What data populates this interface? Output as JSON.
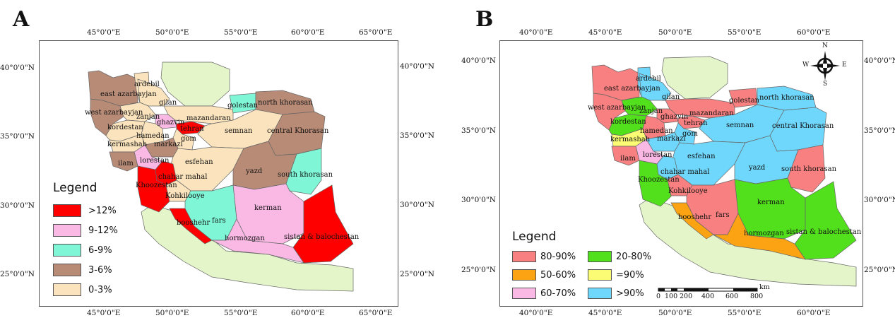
{
  "panels": {
    "A": {
      "letter": "A",
      "top_lon_ticks": [
        "45°0'0\"E",
        "50°0'0\"E",
        "55°0'0\"E",
        "60°0'0\"E",
        "65°0'0\"E"
      ],
      "bottom_lon_ticks": [
        "45°0'0\"E",
        "50°0'0\"E",
        "55°0'0\"E",
        "60°0'0\"E",
        "65°0'0\"E"
      ],
      "left_lat_ticks": [
        "40°0'0\"N",
        "35°0'0\"N",
        "30°0'0\"N",
        "25°0'0\"N"
      ],
      "right_lat_ticks": [
        "40°0'0\"N",
        "35°0'0\"N",
        "30°0'0\"N",
        "25°0'0\"N"
      ],
      "legend_title": "Legend",
      "legend": [
        {
          "label": ">12%",
          "color": "#ff0000"
        },
        {
          "label": "9-12%",
          "color": "#f9b9e4"
        },
        {
          "label": "6-9%",
          "color": "#7ff7d7"
        },
        {
          "label": "3-6%",
          "color": "#b88b77"
        },
        {
          "label": "0-3%",
          "color": "#fbe4bd"
        }
      ],
      "provinces": [
        {
          "name": "ardebil",
          "color": "#fbe4bd"
        },
        {
          "name": "east azarbayjan",
          "color": "#b88b77"
        },
        {
          "name": "gilan",
          "color": "#fbe4bd"
        },
        {
          "name": "golestan",
          "color": "#7ff7d7"
        },
        {
          "name": "north khorasan",
          "color": "#b88b77"
        },
        {
          "name": "west azarbayjan",
          "color": "#b88b77"
        },
        {
          "name": "zanjan",
          "color": "#fbe4bd"
        },
        {
          "name": "mazandaran",
          "color": "#fbe4bd"
        },
        {
          "name": "ghazvin",
          "color": "#f9b9e4"
        },
        {
          "name": "kordestan",
          "color": "#fbe4bd"
        },
        {
          "name": "tehran",
          "color": "#ff0000"
        },
        {
          "name": "semnan",
          "color": "#fbe4bd"
        },
        {
          "name": "central Khorasan",
          "color": "#b88b77"
        },
        {
          "name": "hamedan",
          "color": "#fbe4bd"
        },
        {
          "name": "gom",
          "color": "#fbe4bd"
        },
        {
          "name": "kermashah",
          "color": "#fbe4bd"
        },
        {
          "name": "markazi",
          "color": "#b88b77"
        },
        {
          "name": "lorestan",
          "color": "#f9b9e4"
        },
        {
          "name": "esfehan",
          "color": "#fbe4bd"
        },
        {
          "name": "ilam",
          "color": "#b88b77"
        },
        {
          "name": "yazd",
          "color": "#b88b77"
        },
        {
          "name": "south khorasan",
          "color": "#7ff7d7"
        },
        {
          "name": "chahar mahal",
          "color": "#ff0000"
        },
        {
          "name": "Khoozestan",
          "color": "#ff0000"
        },
        {
          "name": "Kohkilooye",
          "color": "#fbe4bd"
        },
        {
          "name": "kerman",
          "color": "#f9b9e4"
        },
        {
          "name": "booshehr",
          "color": "#ff0000"
        },
        {
          "name": "fars",
          "color": "#7ff7d7"
        },
        {
          "name": "sistan & balochestan",
          "color": "#ff0000"
        },
        {
          "name": "hormozgan",
          "color": "#f9b9e4"
        }
      ]
    },
    "B": {
      "letter": "B",
      "top_lon_ticks": [
        "40°0'0\"E",
        "45°0'0\"E",
        "50°0'0\"E",
        "55°0'0\"E",
        "60°0'0\"E"
      ],
      "bottom_lon_ticks": [
        "40°0'0\"E",
        "45°0'0\"E",
        "50°0'0\"E",
        "55°0'0\"E",
        "60°0'0\"E"
      ],
      "left_lat_ticks": [
        "40°0'0\"N",
        "35°0'0\"N",
        "30°0'0\"N",
        "25°0'0\"N"
      ],
      "right_lat_ticks": [
        "40°0'0\"N",
        "35°0'0\"N",
        "30°0'0\"N",
        "25°0'0\"N"
      ],
      "legend_title": "Legend",
      "legend": [
        {
          "label": "80-90%",
          "color": "#f98080"
        },
        {
          "label": "20-80%",
          "color": "#52e01c"
        },
        {
          "label": "50-60%",
          "color": "#fba312"
        },
        {
          "label": "=90%",
          "color": "#fbfb74"
        },
        {
          "label": "60-70%",
          "color": "#f9b9e4"
        },
        {
          "label": ">90%",
          "color": "#6ed7fb"
        }
      ],
      "compass": {
        "n": "N",
        "s": "S",
        "e": "E",
        "w": "W"
      },
      "scale": {
        "unit": "km",
        "labels": [
          "0",
          "100",
          "200",
          "400",
          "600",
          "800"
        ]
      },
      "provinces": [
        {
          "name": "ardebil",
          "color": "#6ed7fb"
        },
        {
          "name": "east azarbayjan",
          "color": "#f98080"
        },
        {
          "name": "gilan",
          "color": "#6ed7fb"
        },
        {
          "name": "golestan",
          "color": "#f98080"
        },
        {
          "name": "north khorasan",
          "color": "#6ed7fb"
        },
        {
          "name": "west azarbayjan",
          "color": "#f98080"
        },
        {
          "name": "zanjan",
          "color": "#52e01c"
        },
        {
          "name": "ghazvin",
          "color": "#f98080"
        },
        {
          "name": "mazandaran",
          "color": "#f98080"
        },
        {
          "name": "kordestan",
          "color": "#52e01c"
        },
        {
          "name": "tehran",
          "color": "#f98080"
        },
        {
          "name": "semnan",
          "color": "#6ed7fb"
        },
        {
          "name": "central Khorasan",
          "color": "#6ed7fb"
        },
        {
          "name": "hamedan",
          "color": "#f98080"
        },
        {
          "name": "gom",
          "color": "#6ed7fb"
        },
        {
          "name": "kermashah",
          "color": "#fbfb74"
        },
        {
          "name": "markazi",
          "color": "#6ed7fb"
        },
        {
          "name": "lorestan",
          "color": "#f9b9e4"
        },
        {
          "name": "esfehan",
          "color": "#6ed7fb"
        },
        {
          "name": "ilam",
          "color": "#f98080"
        },
        {
          "name": "yazd",
          "color": "#6ed7fb"
        },
        {
          "name": "south khorasan",
          "color": "#f98080"
        },
        {
          "name": "chahar mahal",
          "color": "#6ed7fb"
        },
        {
          "name": "Khoozestan",
          "color": "#52e01c"
        },
        {
          "name": "Kohkilooye",
          "color": "#f98080"
        },
        {
          "name": "kerman",
          "color": "#52e01c"
        },
        {
          "name": "booshehr",
          "color": "#fba312"
        },
        {
          "name": "fars",
          "color": "#f98080"
        },
        {
          "name": "hormozgan",
          "color": "#fba312"
        },
        {
          "name": "sistan & balochestan",
          "color": "#52e01c"
        }
      ]
    },
    "background_land_color": "#e3f5c9"
  }
}
